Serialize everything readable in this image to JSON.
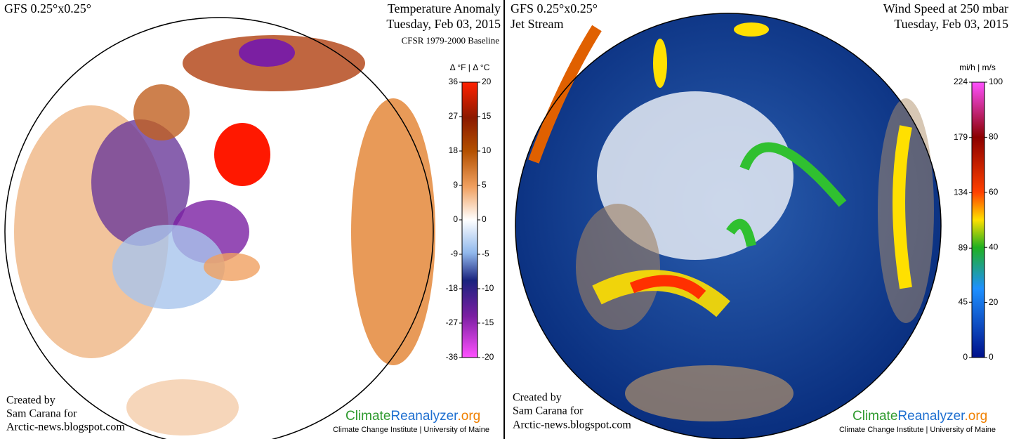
{
  "panels": [
    {
      "model": "GFS 0.25°x0.25°",
      "title": "Temperature Anomaly",
      "date": "Tuesday, Feb 03, 2015",
      "baseline": "CFSR 1979-2000 Baseline",
      "colorbar": {
        "header": "Δ °F  |  Δ °C",
        "left_ticks": [
          36,
          27,
          18,
          9,
          0,
          -9,
          -18,
          -27,
          -36
        ],
        "right_ticks": [
          20,
          15,
          10,
          5,
          0,
          -5,
          -10,
          -15,
          -20
        ]
      },
      "credit": [
        "Created by",
        "Sam Carana for",
        "Arctic-news.blogspot.com"
      ],
      "logo": {
        "part1": "Climate",
        "part2": "Reanalyzer",
        "part3": ".org",
        "footer": "Climate Change Institute | University of Maine"
      }
    },
    {
      "model": "GFS 0.25°x0.25°",
      "subtitle": "Jet Stream",
      "title": "Wind Speed at 250 mbar",
      "date": "Tuesday, Feb 03, 2015",
      "colorbar": {
        "header": "mi/h  |  m/s",
        "left_ticks": [
          224,
          179,
          134,
          89,
          45,
          0
        ],
        "right_ticks": [
          100,
          80,
          60,
          40,
          20,
          0
        ]
      },
      "credit": [
        "Created by",
        "Sam Carana for",
        "Arctic-news.blogspot.com"
      ],
      "logo": {
        "part1": "Climate",
        "part2": "Reanalyzer",
        "part3": ".org",
        "footer": "Climate Change Institute | University of Maine"
      }
    }
  ]
}
